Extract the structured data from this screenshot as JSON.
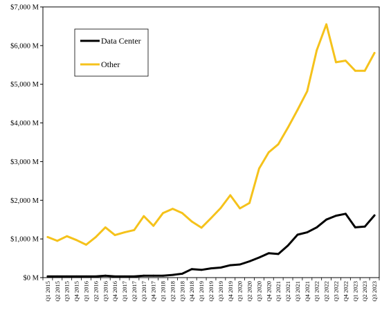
{
  "chart_data": {
    "type": "line",
    "title": "",
    "xlabel": "",
    "ylabel": "",
    "ylim": [
      0,
      7000
    ],
    "yticks": [
      0,
      1000,
      2000,
      3000,
      4000,
      5000,
      6000,
      7000
    ],
    "ytick_labels": [
      "$0 M",
      "$1,000 M",
      "$2,000 M",
      "$3,000 M",
      "$4,000 M",
      "$5,000 M",
      "$6,000 M",
      "$7,000 M"
    ],
    "grid": false,
    "legend_placement": "top-left",
    "categories": [
      "Q1 2015",
      "Q2 2015",
      "Q3 2015",
      "Q4 2015",
      "Q1 2016",
      "Q2 2016",
      "Q3 2016",
      "Q4 2016",
      "Q1 2017",
      "Q2 2017",
      "Q3 2017",
      "Q4 2017",
      "Q1 2018",
      "Q2 2018",
      "Q3 2018",
      "Q4 2018",
      "Q1 2019",
      "Q2 2019",
      "Q3 2019",
      "Q4 2019",
      "Q1 2020",
      "Q2 2020",
      "Q3 2020",
      "Q4 2020",
      "Q1 2021",
      "Q2 2021",
      "Q3 2021",
      "Q4 2021",
      "Q1 2022",
      "Q2 2022",
      "Q3 2022",
      "Q4 2022",
      "Q1 2023",
      "Q2 2023",
      "Q3 2023"
    ],
    "series": [
      {
        "name": "Data Center",
        "color": "#000000",
        "values": [
          30,
          30,
          30,
          30,
          30,
          30,
          50,
          30,
          30,
          30,
          50,
          50,
          50,
          70,
          100,
          220,
          200,
          240,
          260,
          320,
          340,
          420,
          520,
          630,
          610,
          830,
          1110,
          1170,
          1300,
          1500,
          1600,
          1650,
          1300,
          1320,
          1610
        ]
      },
      {
        "name": "Other",
        "color": "#f5c21b",
        "values": [
          1050,
          950,
          1070,
          970,
          850,
          1050,
          1300,
          1100,
          1170,
          1230,
          1590,
          1340,
          1670,
          1780,
          1670,
          1450,
          1290,
          1540,
          1800,
          2130,
          1790,
          1930,
          2820,
          3240,
          3450,
          3880,
          4340,
          4820,
          5880,
          6550,
          5570,
          5610,
          5350,
          5350,
          5810
        ]
      }
    ]
  }
}
